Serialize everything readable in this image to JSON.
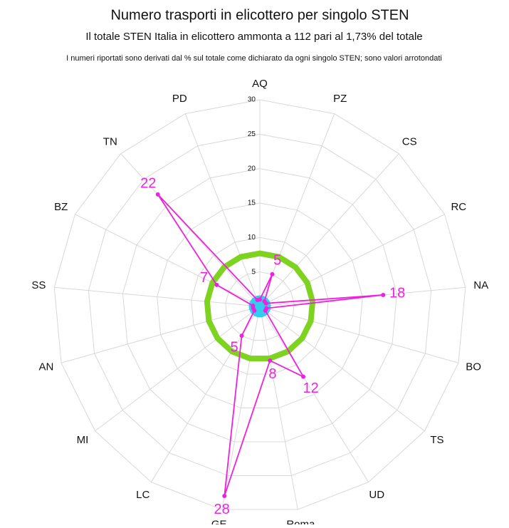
{
  "chart_data": {
    "type": "radar",
    "title": "Numero trasporti in elicottero per singolo STEN",
    "subtitle": "Il totale STEN Italia in elicottero ammonta a 112 pari al 1,73% del totale",
    "note": "I numeri riportati sono derivati dal % sul totale come dichiarato da ogni singolo STEN; sono valori arrotondati",
    "categories": [
      "AQ",
      "PZ",
      "CS",
      "RC",
      "NA",
      "BO",
      "TS",
      "UD",
      "Roma",
      "GE",
      "LC",
      "MI",
      "AN",
      "SS",
      "BZ",
      "TN",
      "PD"
    ],
    "series": [
      {
        "color": "#7ed321",
        "values": [
          7.7,
          7.7,
          7.7,
          7.7,
          7.7,
          7.7,
          7.7,
          7.7,
          7.7,
          7.7,
          7.7,
          7.7,
          7.7,
          7.7,
          7.7,
          7.7,
          7.7
        ]
      },
      {
        "color": "#33ccee",
        "values": [
          1.3,
          1.3,
          1.3,
          1.3,
          1.3,
          1.3,
          1.3,
          1.3,
          1.3,
          1.3,
          1.3,
          1.3,
          1.3,
          1.3,
          1.3,
          1.3,
          1.3
        ]
      },
      {
        "color": "#ee22dd",
        "values": [
          1,
          5,
          1,
          1,
          18,
          1,
          1,
          12,
          8,
          28,
          5,
          1,
          1,
          1,
          7,
          22,
          1
        ]
      }
    ],
    "labeled_series": 2,
    "ylim": [
      0,
      30
    ],
    "yticks": [
      0,
      5,
      10,
      15,
      20,
      25,
      30
    ],
    "grid": true
  }
}
